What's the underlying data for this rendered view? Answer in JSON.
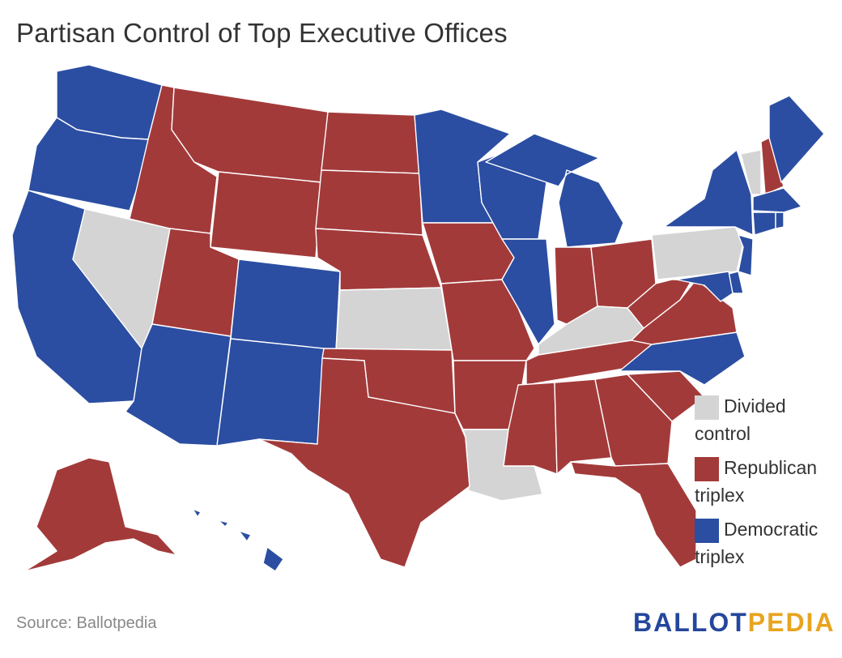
{
  "title": "Partisan Control of Top Executive Offices",
  "colors": {
    "republican": "#a33a3a",
    "democratic": "#2b4ea2",
    "divided": "#d4d4d4"
  },
  "legend": [
    {
      "key": "divided",
      "label": "Divided control",
      "color": "#d4d4d4"
    },
    {
      "key": "republican",
      "label": "Republican triplex",
      "color": "#a33a3a"
    },
    {
      "key": "democratic",
      "label": "Democratic triplex",
      "color": "#2b4ea2"
    }
  ],
  "states": {
    "WA": "democratic",
    "OR": "democratic",
    "CA": "democratic",
    "NV": "divided",
    "ID": "republican",
    "MT": "republican",
    "WY": "republican",
    "UT": "republican",
    "AZ": "democratic",
    "CO": "democratic",
    "NM": "democratic",
    "ND": "republican",
    "SD": "republican",
    "NE": "republican",
    "KS": "divided",
    "OK": "republican",
    "TX": "republican",
    "MN": "democratic",
    "IA": "republican",
    "MO": "republican",
    "AR": "republican",
    "LA": "divided",
    "WI": "democratic",
    "IL": "democratic",
    "MI": "democratic",
    "IN": "republican",
    "OH": "republican",
    "KY": "divided",
    "TN": "republican",
    "MS": "republican",
    "AL": "republican",
    "GA": "republican",
    "FL": "republican",
    "SC": "republican",
    "NC": "democratic",
    "VA": "republican",
    "WV": "republican",
    "PA": "divided",
    "NY": "democratic",
    "VT": "divided",
    "NH": "republican",
    "ME": "democratic",
    "MA": "democratic",
    "CT": "democratic",
    "RI": "democratic",
    "NJ": "democratic",
    "DE": "democratic",
    "MD": "democratic",
    "AK": "republican",
    "HI": "democratic"
  },
  "source": "Source: Ballotpedia",
  "logo": {
    "part1": "BALLOT",
    "part2": "PEDIA"
  }
}
